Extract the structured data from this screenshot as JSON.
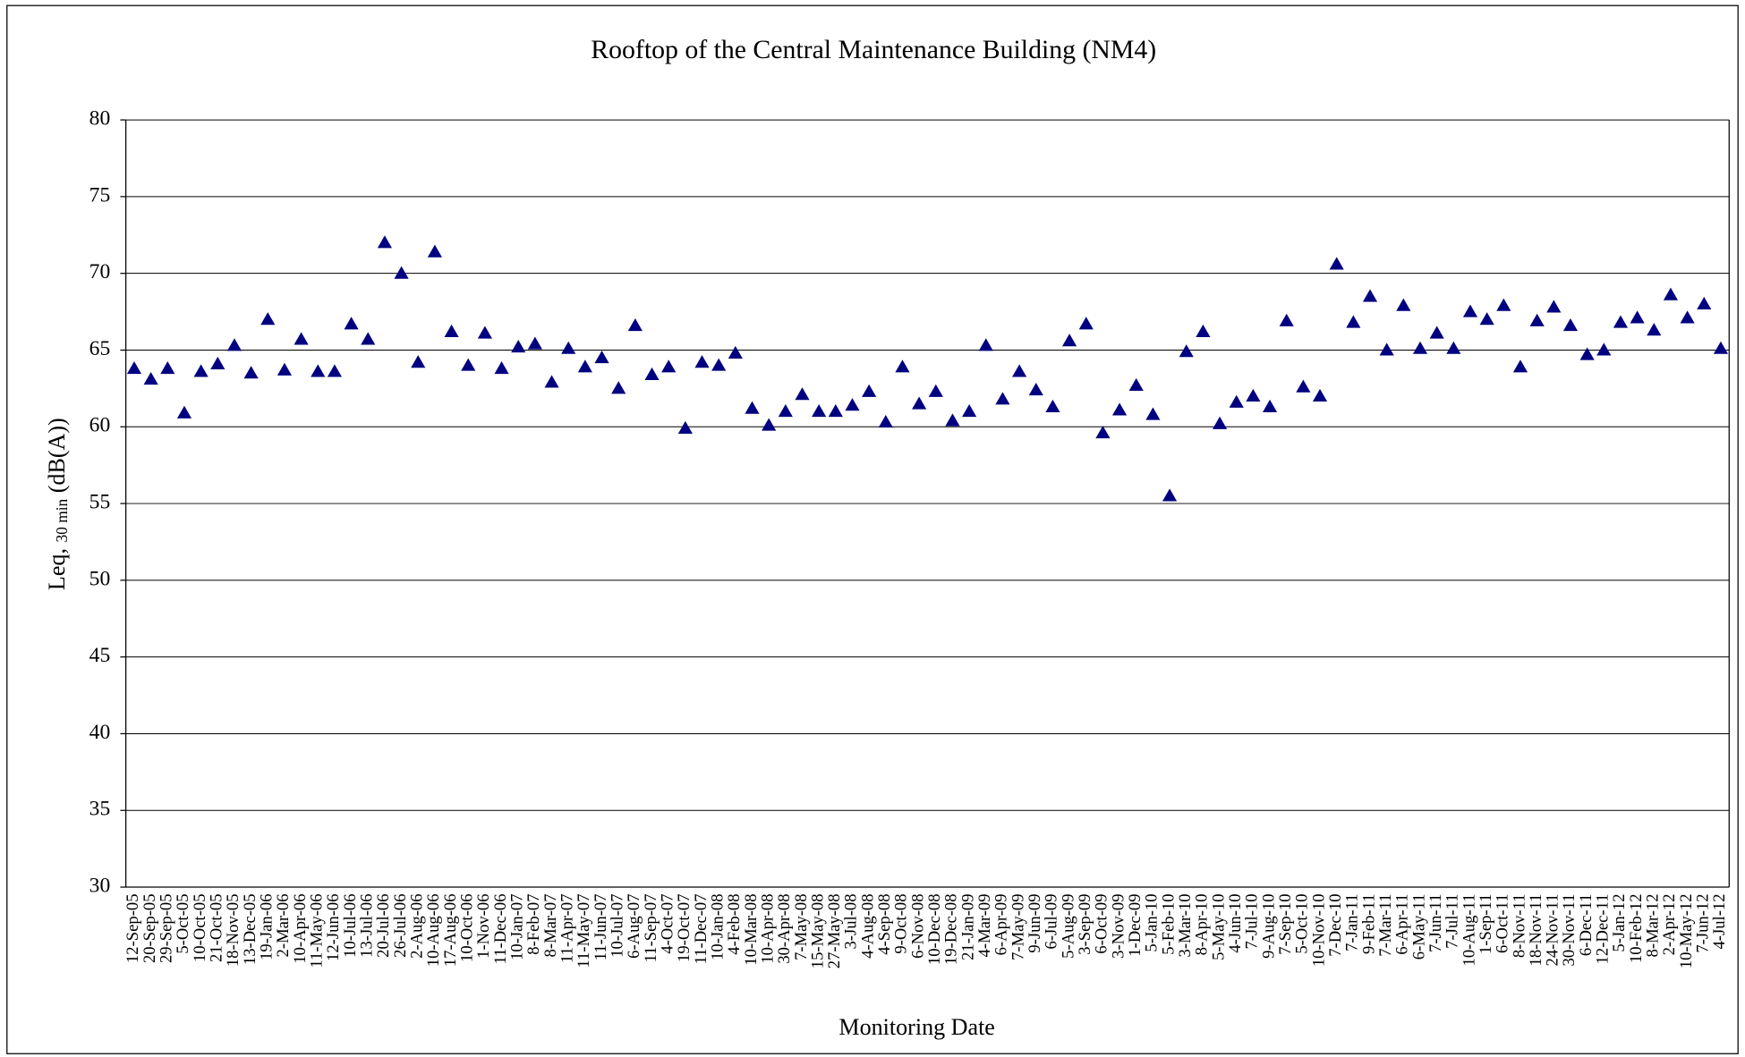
{
  "chart_data": {
    "type": "scatter",
    "title": "Rooftop of the Central Maintenance Building  (NM4)",
    "x_label": "Monitoring Date",
    "y_label": {
      "main": "Leq,",
      "subscript": "30 min",
      "unit": "(dB(A))"
    },
    "ylim": [
      30,
      80
    ],
    "yticks": [
      30,
      35,
      40,
      45,
      50,
      55,
      60,
      65,
      70,
      75,
      80
    ],
    "grid": true,
    "marker": "triangle",
    "color": "#000080",
    "categories": [
      "12-Sep-05",
      "20-Sep-05",
      "29-Sep-05",
      "5-Oct-05",
      "10-Oct-05",
      "21-Oct-05",
      "18-Nov-05",
      "13-Dec-05",
      "19-Jan-06",
      "2-Mar-06",
      "10-Apr-06",
      "11-May-06",
      "12-Jun-06",
      "10-Jul-06",
      "13-Jul-06",
      "20-Jul-06",
      "26-Jul-06",
      "2-Aug-06",
      "10-Aug-06",
      "17-Aug-06",
      "10-Oct-06",
      "1-Nov-06",
      "11-Dec-06",
      "10-Jan-07",
      "8-Feb-07",
      "8-Mar-07",
      "11-Apr-07",
      "11-May-07",
      "11-Jun-07",
      "10-Jul-07",
      "6-Aug-07",
      "11-Sep-07",
      "4-Oct-07",
      "19-Oct-07",
      "11-Dec-07",
      "10-Jan-08",
      "4-Feb-08",
      "10-Mar-08",
      "10-Apr-08",
      "30-Apr-08",
      "7-May-08",
      "15-May-08",
      "27-May-08",
      "3-Jul-08",
      "4-Aug-08",
      "4-Sep-08",
      "9-Oct-08",
      "6-Nov-08",
      "10-Dec-08",
      "19-Dec-08",
      "21-Jan-09",
      "4-Mar-09",
      "6-Apr-09",
      "7-May-09",
      "9-Jun-09",
      "6-Jul-09",
      "5-Aug-09",
      "3-Sep-09",
      "6-Oct-09",
      "3-Nov-09",
      "1-Dec-09",
      "5-Jan-10",
      "5-Feb-10",
      "3-Mar-10",
      "8-Apr-10",
      "5-May-10",
      "4-Jun-10",
      "7-Jul-10",
      "9-Aug-10",
      "7-Sep-10",
      "5-Oct-10",
      "10-Nov-10",
      "7-Dec-10",
      "7-Jan-11",
      "9-Feb-11",
      "7-Mar-11",
      "6-Apr-11",
      "6-May-11",
      "7-Jun-11",
      "7-Jul-11",
      "10-Aug-11",
      "1-Sep-11",
      "6-Oct-11",
      "8-Nov-11",
      "18-Nov-11",
      "24-Nov-11",
      "30-Nov-11",
      "6-Dec-11",
      "12-Dec-11",
      "5-Jan-12",
      "10-Feb-12",
      "8-Mar-12",
      "2-Apr-12",
      "10-May-12",
      "7-Jun-12",
      "4-Jul-12"
    ],
    "values": [
      63.8,
      63.1,
      63.8,
      60.9,
      63.6,
      64.1,
      65.3,
      63.5,
      67.0,
      63.7,
      65.7,
      63.6,
      63.6,
      66.7,
      65.7,
      72.0,
      70.0,
      64.2,
      71.4,
      66.2,
      64.0,
      66.1,
      63.8,
      65.2,
      65.4,
      62.9,
      65.1,
      63.9,
      64.5,
      62.5,
      66.6,
      63.4,
      63.9,
      59.9,
      64.2,
      64.0,
      64.8,
      61.2,
      60.1,
      61.0,
      62.1,
      61.0,
      61.0,
      61.4,
      62.3,
      60.3,
      63.9,
      61.5,
      62.3,
      60.4,
      61.0,
      65.3,
      61.8,
      63.6,
      62.4,
      61.3,
      65.6,
      66.7,
      59.6,
      61.1,
      62.7,
      60.8,
      55.5,
      64.9,
      66.2,
      60.2,
      61.6,
      62.0,
      61.3,
      66.9,
      62.6,
      62.0,
      70.6,
      66.8,
      68.5,
      65.0,
      67.9,
      65.1,
      66.1,
      65.1,
      67.5,
      67.0,
      67.9,
      63.9,
      66.9,
      67.8,
      66.6,
      64.7,
      65.0,
      66.8,
      67.1,
      66.3,
      68.6,
      67.1,
      68.0,
      65.1
    ]
  }
}
